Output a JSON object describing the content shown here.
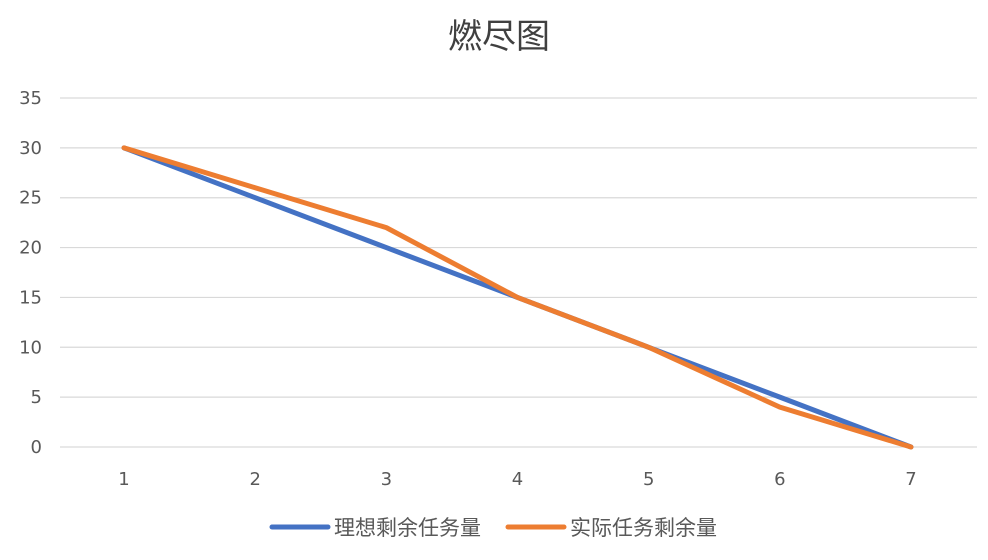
{
  "chart_data": {
    "type": "line",
    "title": "燃尽图",
    "categories": [
      "1",
      "2",
      "3",
      "4",
      "5",
      "6",
      "7"
    ],
    "x": [
      1,
      2,
      3,
      4,
      5,
      6,
      7
    ],
    "series": [
      {
        "name": "理想剩余任务量",
        "values": [
          30,
          25,
          20,
          15,
          10,
          5,
          0
        ],
        "color": "#4472C4"
      },
      {
        "name": "实际任务剩余量",
        "values": [
          30,
          26,
          22,
          15,
          10,
          4,
          0
        ],
        "color": "#ED7D31"
      }
    ],
    "ylim": [
      0,
      35
    ],
    "yticks": [
      0,
      5,
      10,
      15,
      20,
      25,
      30,
      35
    ],
    "grid": true,
    "legend": "bottom",
    "gridColor": "#D9D9D9"
  }
}
